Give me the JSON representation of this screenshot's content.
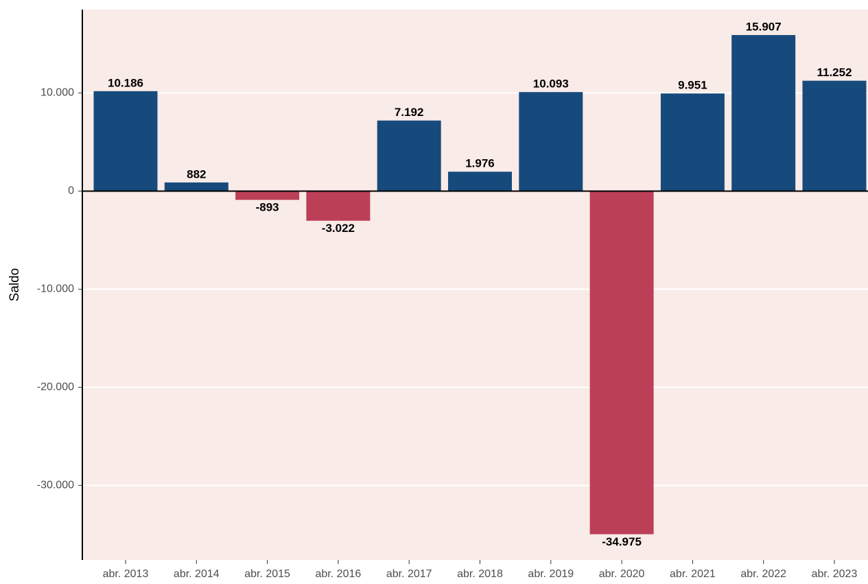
{
  "chart_data": {
    "type": "bar",
    "y_label": "Saldo",
    "categories": [
      "abr. 2013",
      "abr. 2014",
      "abr. 2015",
      "abr. 2016",
      "abr. 2017",
      "abr. 2018",
      "abr. 2019",
      "abr. 2020",
      "abr. 2021",
      "abr. 2022",
      "abr. 2023"
    ],
    "values": [
      10186,
      882,
      -893,
      -3022,
      7192,
      1976,
      10093,
      -34975,
      9951,
      15907,
      11252
    ],
    "value_labels": [
      "10.186",
      "882",
      "-893",
      "-3.022",
      "7.192",
      "1.976",
      "10.093",
      "-34.975",
      "9.951",
      "15.907",
      "11.252"
    ],
    "color": "#174a7c",
    "negative_color": "#bc3f58",
    "background": "#f9ebe7",
    "ylim": [
      -37600,
      18500
    ],
    "yticks": [
      {
        "value": -30000,
        "label": "-30.000"
      },
      {
        "value": -20000,
        "label": "-20.000"
      },
      {
        "value": -10000,
        "label": "-10.000"
      },
      0,
      {
        "value": 10000,
        "label": "10.000"
      }
    ],
    "grid": true
  }
}
